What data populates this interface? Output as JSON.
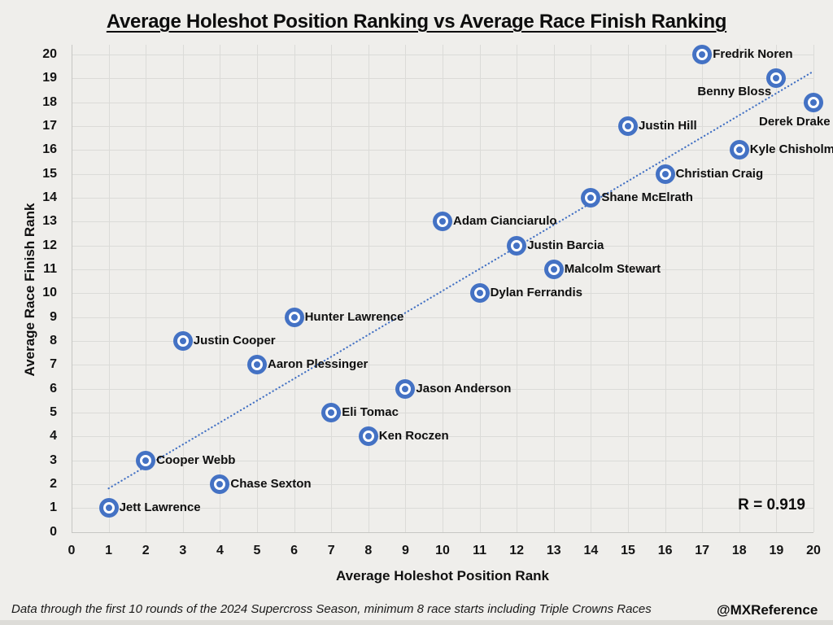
{
  "title": "Average Holeshot Position Ranking vs Average Race Finish Ranking",
  "footer": {
    "note": "Data through the first 10 rounds of the 2024 Supercross Season, minimum 8 race starts including Triple Crowns Races",
    "credit": "@MXReference"
  },
  "chart_data": {
    "type": "scatter",
    "title": "Average Holeshot Position Ranking vs Average Race Finish Ranking",
    "xlabel": "Average Holeshot Position Rank",
    "ylabel": "Average Race Finish Rank",
    "xlim": [
      0,
      20
    ],
    "ylim": [
      0,
      20
    ],
    "x_ticks": [
      0,
      1,
      2,
      3,
      4,
      5,
      6,
      7,
      8,
      9,
      10,
      11,
      12,
      13,
      14,
      15,
      16,
      17,
      18,
      19,
      20
    ],
    "y_ticks": [
      0,
      1,
      2,
      3,
      4,
      5,
      6,
      7,
      8,
      9,
      10,
      11,
      12,
      13,
      14,
      15,
      16,
      17,
      18,
      19,
      20
    ],
    "grid": true,
    "legend": false,
    "marker_color": "#4472C4",
    "trendline": {
      "style": "dotted",
      "color": "#4472C4",
      "from": [
        1.0,
        1.82
      ],
      "to": [
        19.95,
        19.25
      ]
    },
    "correlation_label": "R = 0.919",
    "points": [
      {
        "name": "Jett Lawrence",
        "x": 1,
        "y": 1
      },
      {
        "name": "Chase Sexton",
        "x": 4,
        "y": 2
      },
      {
        "name": "Cooper Webb",
        "x": 2,
        "y": 3
      },
      {
        "name": "Ken Roczen",
        "x": 8,
        "y": 4
      },
      {
        "name": "Eli Tomac",
        "x": 7,
        "y": 5
      },
      {
        "name": "Jason Anderson",
        "x": 9,
        "y": 6
      },
      {
        "name": "Aaron Plessinger",
        "x": 5,
        "y": 7
      },
      {
        "name": "Justin Cooper",
        "x": 3,
        "y": 8
      },
      {
        "name": "Hunter Lawrence",
        "x": 6,
        "y": 9
      },
      {
        "name": "Dylan Ferrandis",
        "x": 11,
        "y": 10
      },
      {
        "name": "Malcolm Stewart",
        "x": 13,
        "y": 11
      },
      {
        "name": "Justin Barcia",
        "x": 12,
        "y": 12
      },
      {
        "name": "Adam Cianciarulo",
        "x": 10,
        "y": 13
      },
      {
        "name": "Shane McElrath",
        "x": 14,
        "y": 14
      },
      {
        "name": "Christian Craig",
        "x": 16,
        "y": 15
      },
      {
        "name": "Kyle Chisholm",
        "x": 18,
        "y": 16
      },
      {
        "name": "Justin Hill",
        "x": 15,
        "y": 17
      },
      {
        "name": "Derek Drake",
        "x": 20,
        "y": 18,
        "label_offset": [
          -67,
          14
        ]
      },
      {
        "name": "Benny Bloss",
        "x": 19,
        "y": 19,
        "label_offset": [
          -97,
          7
        ]
      },
      {
        "name": "Fredrik Noren",
        "x": 17,
        "y": 20
      }
    ]
  }
}
